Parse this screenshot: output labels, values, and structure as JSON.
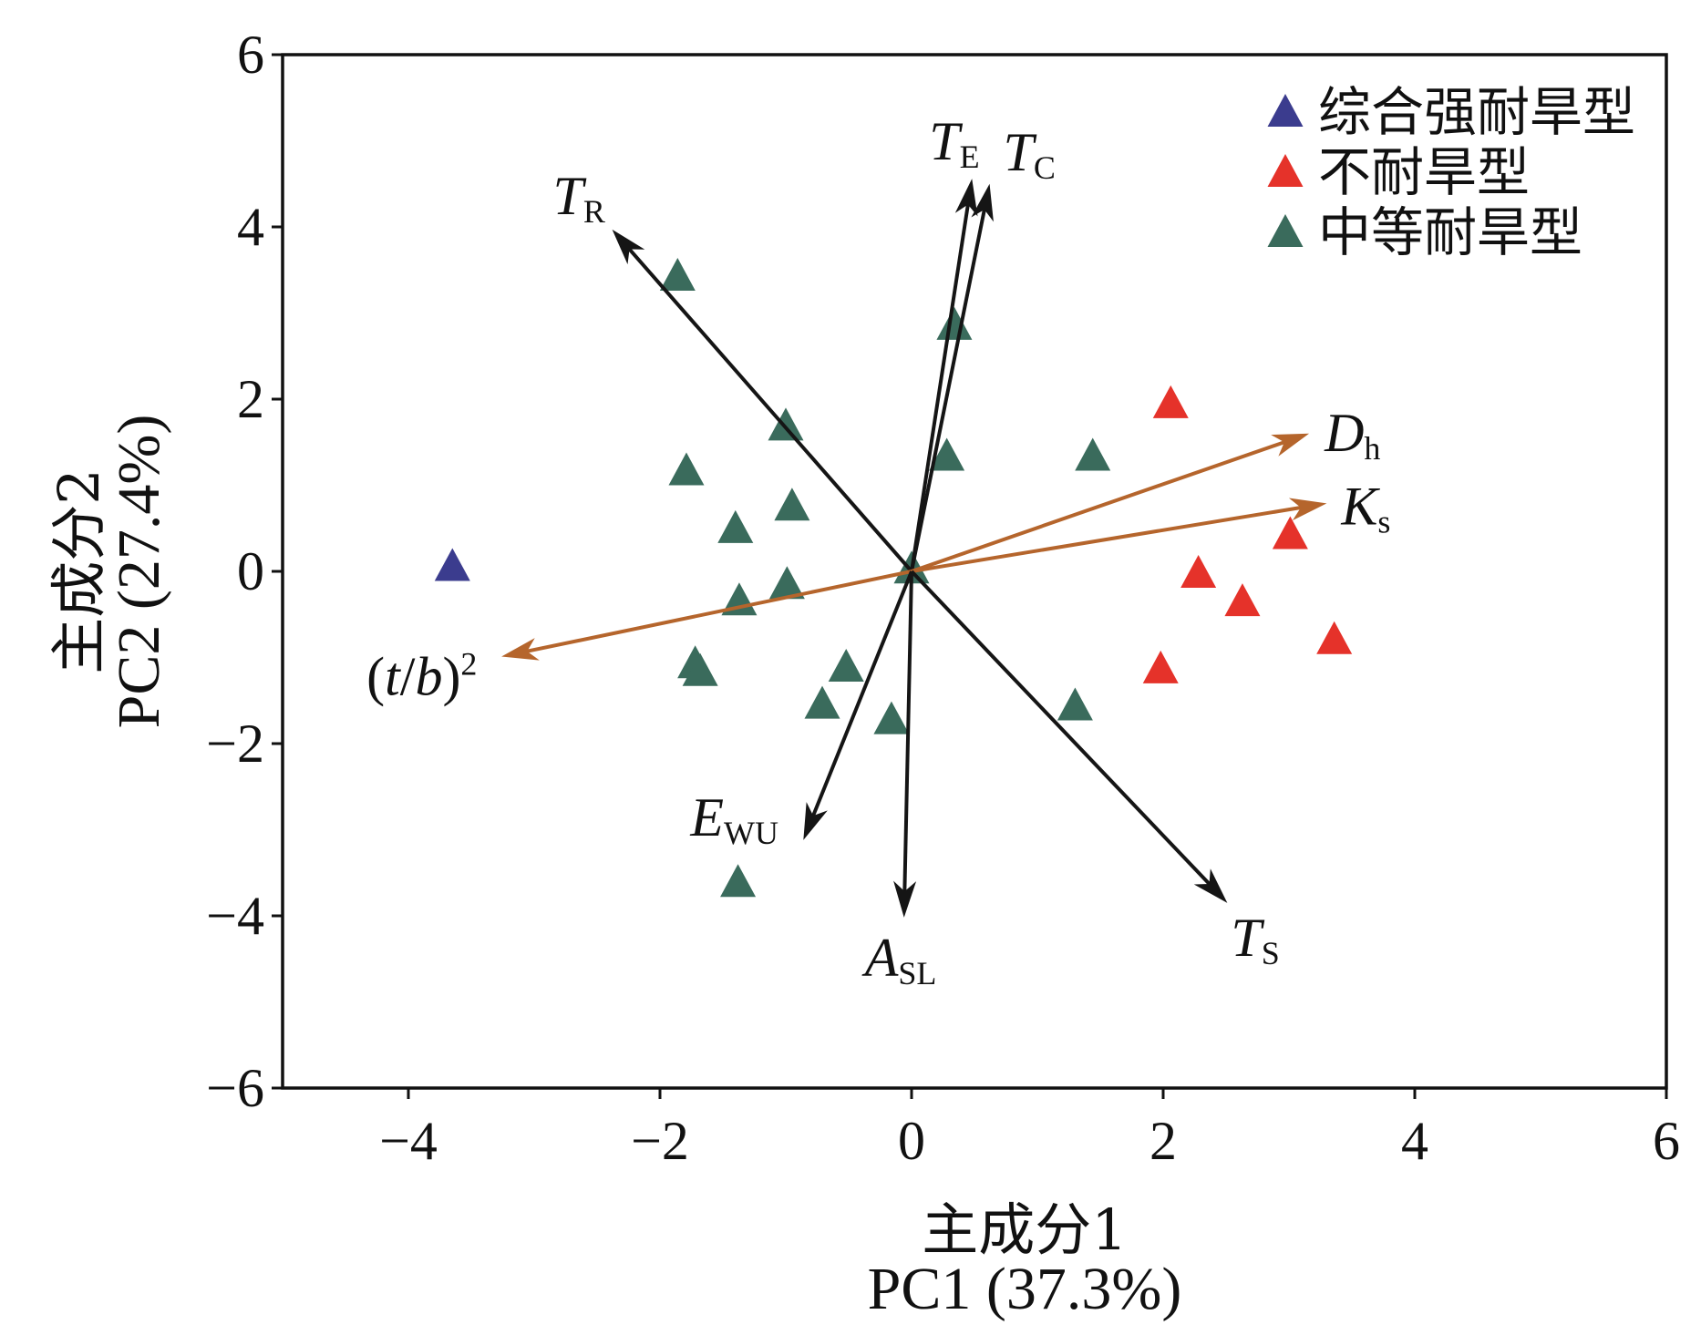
{
  "chart_data": {
    "type": "scatter",
    "xlim": [
      -5,
      6
    ],
    "ylim": [
      -6,
      6
    ],
    "xticks": [
      -4,
      -2,
      0,
      2,
      4,
      6
    ],
    "xtick_labels": [
      "−4",
      "−2",
      "0",
      "2",
      "4",
      "6"
    ],
    "yticks": [
      6,
      4,
      2,
      0,
      -2,
      -4,
      -6
    ],
    "ytick_labels": [
      "6",
      "4",
      "2",
      "0",
      "−2",
      "−4",
      "−6"
    ],
    "xlabel": {
      "zh": "主成分1",
      "en": "PC1 (37.3%)"
    },
    "ylabel": {
      "zh": "主成分2",
      "en": "PC2 (27.4%)"
    },
    "grid": false,
    "legend_position": "top-right",
    "series": [
      {
        "name": "综合强耐旱型",
        "color": "#3b3c8e",
        "points": [
          [
            -3.65,
            0.08
          ]
        ]
      },
      {
        "name": "不耐旱型",
        "color": "#e5322a",
        "points": [
          [
            2.06,
            1.97
          ],
          [
            3.01,
            0.45
          ],
          [
            2.28,
            0.0
          ],
          [
            2.63,
            -0.33
          ],
          [
            3.36,
            -0.77
          ],
          [
            1.98,
            -1.11
          ]
        ]
      },
      {
        "name": "中等耐旱型",
        "color": "#3a6b5c",
        "points": [
          [
            -1.86,
            3.45
          ],
          [
            0.34,
            2.88
          ],
          [
            -1.0,
            1.71
          ],
          [
            0.28,
            1.36
          ],
          [
            1.44,
            1.36
          ],
          [
            -1.79,
            1.19
          ],
          [
            -0.95,
            0.78
          ],
          [
            -1.4,
            0.52
          ],
          [
            -0.99,
            -0.13
          ],
          [
            -1.37,
            -0.32
          ],
          [
            0.0,
            0.05
          ],
          [
            -1.72,
            -1.05
          ],
          [
            -1.68,
            -1.14
          ],
          [
            -0.52,
            -1.09
          ],
          [
            -0.71,
            -1.52
          ],
          [
            -0.16,
            -1.7
          ],
          [
            1.3,
            -1.54
          ],
          [
            -1.38,
            -3.59
          ]
        ]
      }
    ],
    "loadings": [
      {
        "x": -2.38,
        "y": 3.97,
        "color": "#151515",
        "label": [
          {
            "text": "T",
            "italic": true
          },
          {
            "text": "R",
            "sub": true
          }
        ]
      },
      {
        "x": 0.48,
        "y": 4.56,
        "color": "#151515",
        "label": [
          {
            "text": "T",
            "italic": true
          },
          {
            "text": "E",
            "sub": true
          }
        ]
      },
      {
        "x": 0.62,
        "y": 4.5,
        "color": "#151515",
        "label": [
          {
            "text": "T",
            "italic": true
          },
          {
            "text": "C",
            "sub": true
          }
        ]
      },
      {
        "x": 3.16,
        "y": 1.6,
        "color": "#b5652c",
        "label": [
          {
            "text": "D",
            "italic": true
          },
          {
            "text": "h",
            "sub": true
          }
        ]
      },
      {
        "x": 3.3,
        "y": 0.79,
        "color": "#b5652c",
        "label": [
          {
            "text": "K",
            "italic": true
          },
          {
            "text": "s",
            "sub": true
          }
        ]
      },
      {
        "x": -3.26,
        "y": -0.99,
        "color": "#b5652c",
        "label": [
          {
            "text": "("
          },
          {
            "text": "t",
            "italic": true
          },
          {
            "text": "/"
          },
          {
            "text": "b",
            "italic": true
          },
          {
            "text": ")"
          },
          {
            "text": "2",
            "sup": true
          }
        ]
      },
      {
        "x": -0.86,
        "y": -3.12,
        "color": "#151515",
        "label": [
          {
            "text": "E",
            "italic": true
          },
          {
            "text": "WU",
            "sub": true
          }
        ]
      },
      {
        "x": -0.06,
        "y": -4.02,
        "color": "#151515",
        "label": [
          {
            "text": "A",
            "italic": true
          },
          {
            "text": "SL",
            "sub": true
          }
        ]
      },
      {
        "x": 2.51,
        "y": -3.85,
        "color": "#151515",
        "label": [
          {
            "text": "T",
            "italic": true
          },
          {
            "text": "S",
            "sub": true
          }
        ]
      }
    ]
  }
}
